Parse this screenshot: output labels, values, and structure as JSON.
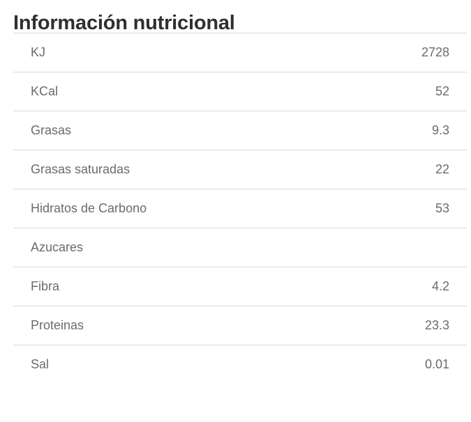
{
  "title": "Información nutricional",
  "rows": [
    {
      "label": "KJ",
      "value": "2728"
    },
    {
      "label": "KCal",
      "value": "52"
    },
    {
      "label": "Grasas",
      "value": "9.3"
    },
    {
      "label": "Grasas saturadas",
      "value": "22"
    },
    {
      "label": "Hidratos de Carbono",
      "value": "53"
    },
    {
      "label": "Azucares",
      "value": ""
    },
    {
      "label": "Fibra",
      "value": "4.2"
    },
    {
      "label": "Proteinas",
      "value": "23.3"
    },
    {
      "label": "Sal",
      "value": "0.01"
    }
  ]
}
